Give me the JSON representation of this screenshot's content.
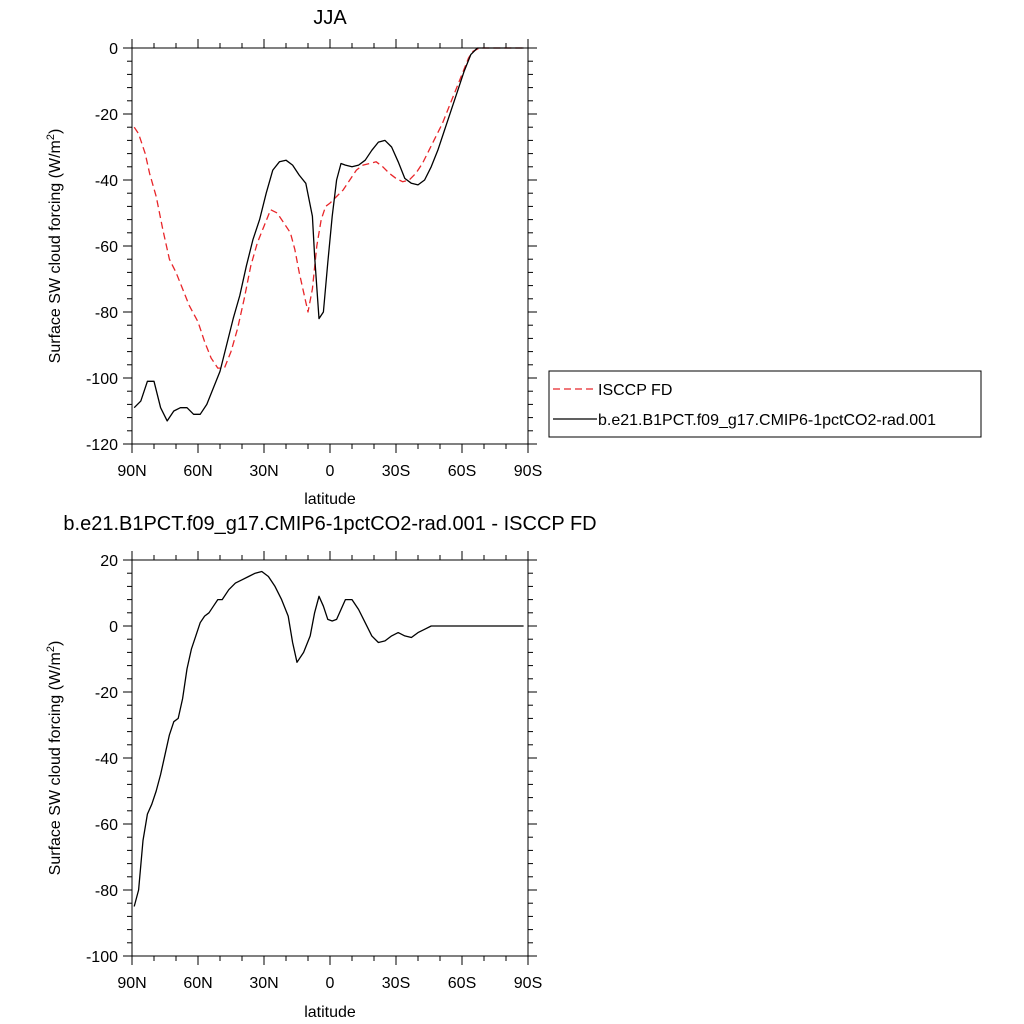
{
  "chart_data": [
    {
      "type": "line",
      "title": "JJA",
      "xlabel": "latitude",
      "ylabel": "Surface SW cloud forcing (W/m",
      "ylabel_sup": "2",
      "ylabel_tail": ")",
      "xlim": [
        90,
        -90
      ],
      "ylim": [
        -120,
        0
      ],
      "xticks": [
        90,
        60,
        30,
        0,
        -30,
        -60,
        -90
      ],
      "xticklabels": [
        "90N",
        "60N",
        "30N",
        "0",
        "30S",
        "60S",
        "90S"
      ],
      "yticks": [
        -120,
        -100,
        -80,
        -60,
        -40,
        -20,
        0
      ],
      "yticklabels": [
        "-120",
        "-100",
        "-80",
        "-60",
        "-40",
        "-20",
        "0"
      ],
      "legend_position": "right",
      "series": [
        {
          "name": "ISCCP FD",
          "color": "#e8262a",
          "dash": "dashed",
          "x": [
            89,
            87,
            84,
            82,
            79,
            76,
            73,
            70,
            67,
            64,
            60,
            57,
            54,
            51,
            48,
            45,
            42,
            39,
            36,
            33,
            30,
            27,
            24,
            21,
            18,
            16,
            14,
            12,
            10,
            8,
            6,
            4,
            2,
            0,
            -3,
            -6,
            -9,
            -12,
            -15,
            -18,
            -21,
            -24,
            -27,
            -30,
            -33,
            -36,
            -39,
            -42,
            -45,
            -48,
            -51,
            -54,
            -57,
            -60,
            -63,
            -65,
            -68,
            -70,
            -72,
            -76,
            -80,
            -84,
            -88
          ],
          "y": [
            -24,
            -26,
            -32,
            -38,
            -45,
            -55,
            -64,
            -68,
            -73,
            -78,
            -83,
            -89,
            -94,
            -97,
            -97,
            -92,
            -85,
            -76,
            -66,
            -59,
            -54,
            -49,
            -50,
            -53,
            -56,
            -61,
            -68,
            -74,
            -80,
            -73,
            -60,
            -52,
            -48,
            -47,
            -45,
            -43,
            -40,
            -37,
            -35.5,
            -35,
            -34.5,
            -36,
            -38,
            -39.5,
            -40.5,
            -40,
            -38,
            -35,
            -31,
            -27,
            -23,
            -18,
            -13,
            -8,
            -3,
            -1,
            0,
            0,
            0,
            0,
            0,
            0,
            0
          ]
        },
        {
          "name": "b.e21.B1PCT.f09_g17.CMIP6-1pctCO2-rad.001",
          "color": "#000000",
          "dash": "solid",
          "x": [
            89,
            86,
            83,
            80,
            77,
            74,
            71,
            68,
            65,
            62,
            59,
            56,
            53,
            50,
            47,
            44,
            41,
            38,
            35,
            32,
            29,
            26,
            23,
            20,
            17,
            14,
            11,
            8,
            7,
            5,
            3,
            1,
            -1,
            -3,
            -5,
            -7,
            -10,
            -13,
            -16,
            -19,
            -22,
            -25,
            -28,
            -31,
            -34,
            -37,
            -40,
            -43,
            -46,
            -49,
            -52,
            -55,
            -58,
            -61,
            -64,
            -67,
            -70,
            -73,
            -76,
            -80,
            -84,
            -88
          ],
          "y": [
            -109,
            -107,
            -101,
            -101,
            -109,
            -113,
            -110,
            -109,
            -109,
            -111,
            -111,
            -108,
            -103,
            -98,
            -90,
            -82,
            -75,
            -66,
            -58,
            -52,
            -44,
            -37,
            -34.5,
            -34,
            -35.5,
            -38.5,
            -41,
            -51,
            -63,
            -82,
            -80,
            -65,
            -51,
            -40,
            -35,
            -35.5,
            -36,
            -35.5,
            -34,
            -31,
            -28.5,
            -28,
            -30,
            -34.5,
            -39.5,
            -41,
            -41.5,
            -40,
            -36,
            -31,
            -25,
            -19,
            -13,
            -7,
            -2,
            0,
            0,
            0,
            0,
            0,
            0,
            0
          ]
        }
      ]
    },
    {
      "type": "line",
      "title": "b.e21.B1PCT.f09_g17.CMIP6-1pctCO2-rad.001 - ISCCP FD",
      "xlabel": "latitude",
      "ylabel": "Surface SW cloud forcing (W/m",
      "ylabel_sup": "2",
      "ylabel_tail": ")",
      "xlim": [
        90,
        -90
      ],
      "ylim": [
        -100,
        20
      ],
      "xticks": [
        90,
        60,
        30,
        0,
        -30,
        -60,
        -90
      ],
      "xticklabels": [
        "90N",
        "60N",
        "30N",
        "0",
        "30S",
        "60S",
        "90S"
      ],
      "yticks": [
        -100,
        -80,
        -60,
        -40,
        -20,
        0,
        20
      ],
      "yticklabels": [
        "-100",
        "-80",
        "-60",
        "-40",
        "-20",
        "0",
        "20"
      ],
      "series": [
        {
          "color": "#000000",
          "dash": "solid",
          "x": [
            89,
            87,
            85,
            83,
            81,
            79,
            77,
            75,
            73,
            71,
            69,
            67,
            65,
            63,
            61,
            59,
            57,
            55,
            53,
            51,
            49,
            46,
            43,
            40,
            37,
            34,
            31,
            28,
            25,
            22,
            19,
            17,
            15,
            12,
            9,
            7,
            5,
            3,
            1,
            -1,
            -3,
            -5,
            -7,
            -10,
            -13,
            -16,
            -19,
            -22,
            -25,
            -28,
            -31,
            -34,
            -37,
            -40,
            -43,
            -46,
            -49,
            -52,
            -55,
            -58,
            -61,
            -64,
            -67,
            -70,
            -73,
            -76,
            -80,
            -84,
            -88
          ],
          "y": [
            -85,
            -80,
            -65,
            -57,
            -54,
            -50,
            -45,
            -39,
            -33,
            -29,
            -28,
            -22,
            -13,
            -7,
            -3,
            1,
            3,
            4,
            6,
            8,
            8,
            11,
            13,
            14,
            15,
            16,
            16.5,
            15,
            12,
            8,
            3,
            -5,
            -11,
            -8,
            -3,
            4,
            9,
            6,
            2,
            1.5,
            2,
            5,
            8,
            8,
            5,
            1,
            -3,
            -5,
            -4.5,
            -3,
            -2,
            -3,
            -3.5,
            -2,
            -1,
            0,
            0,
            0,
            0,
            0,
            0,
            0,
            0,
            0,
            0,
            0,
            0,
            0,
            0
          ]
        }
      ]
    }
  ]
}
